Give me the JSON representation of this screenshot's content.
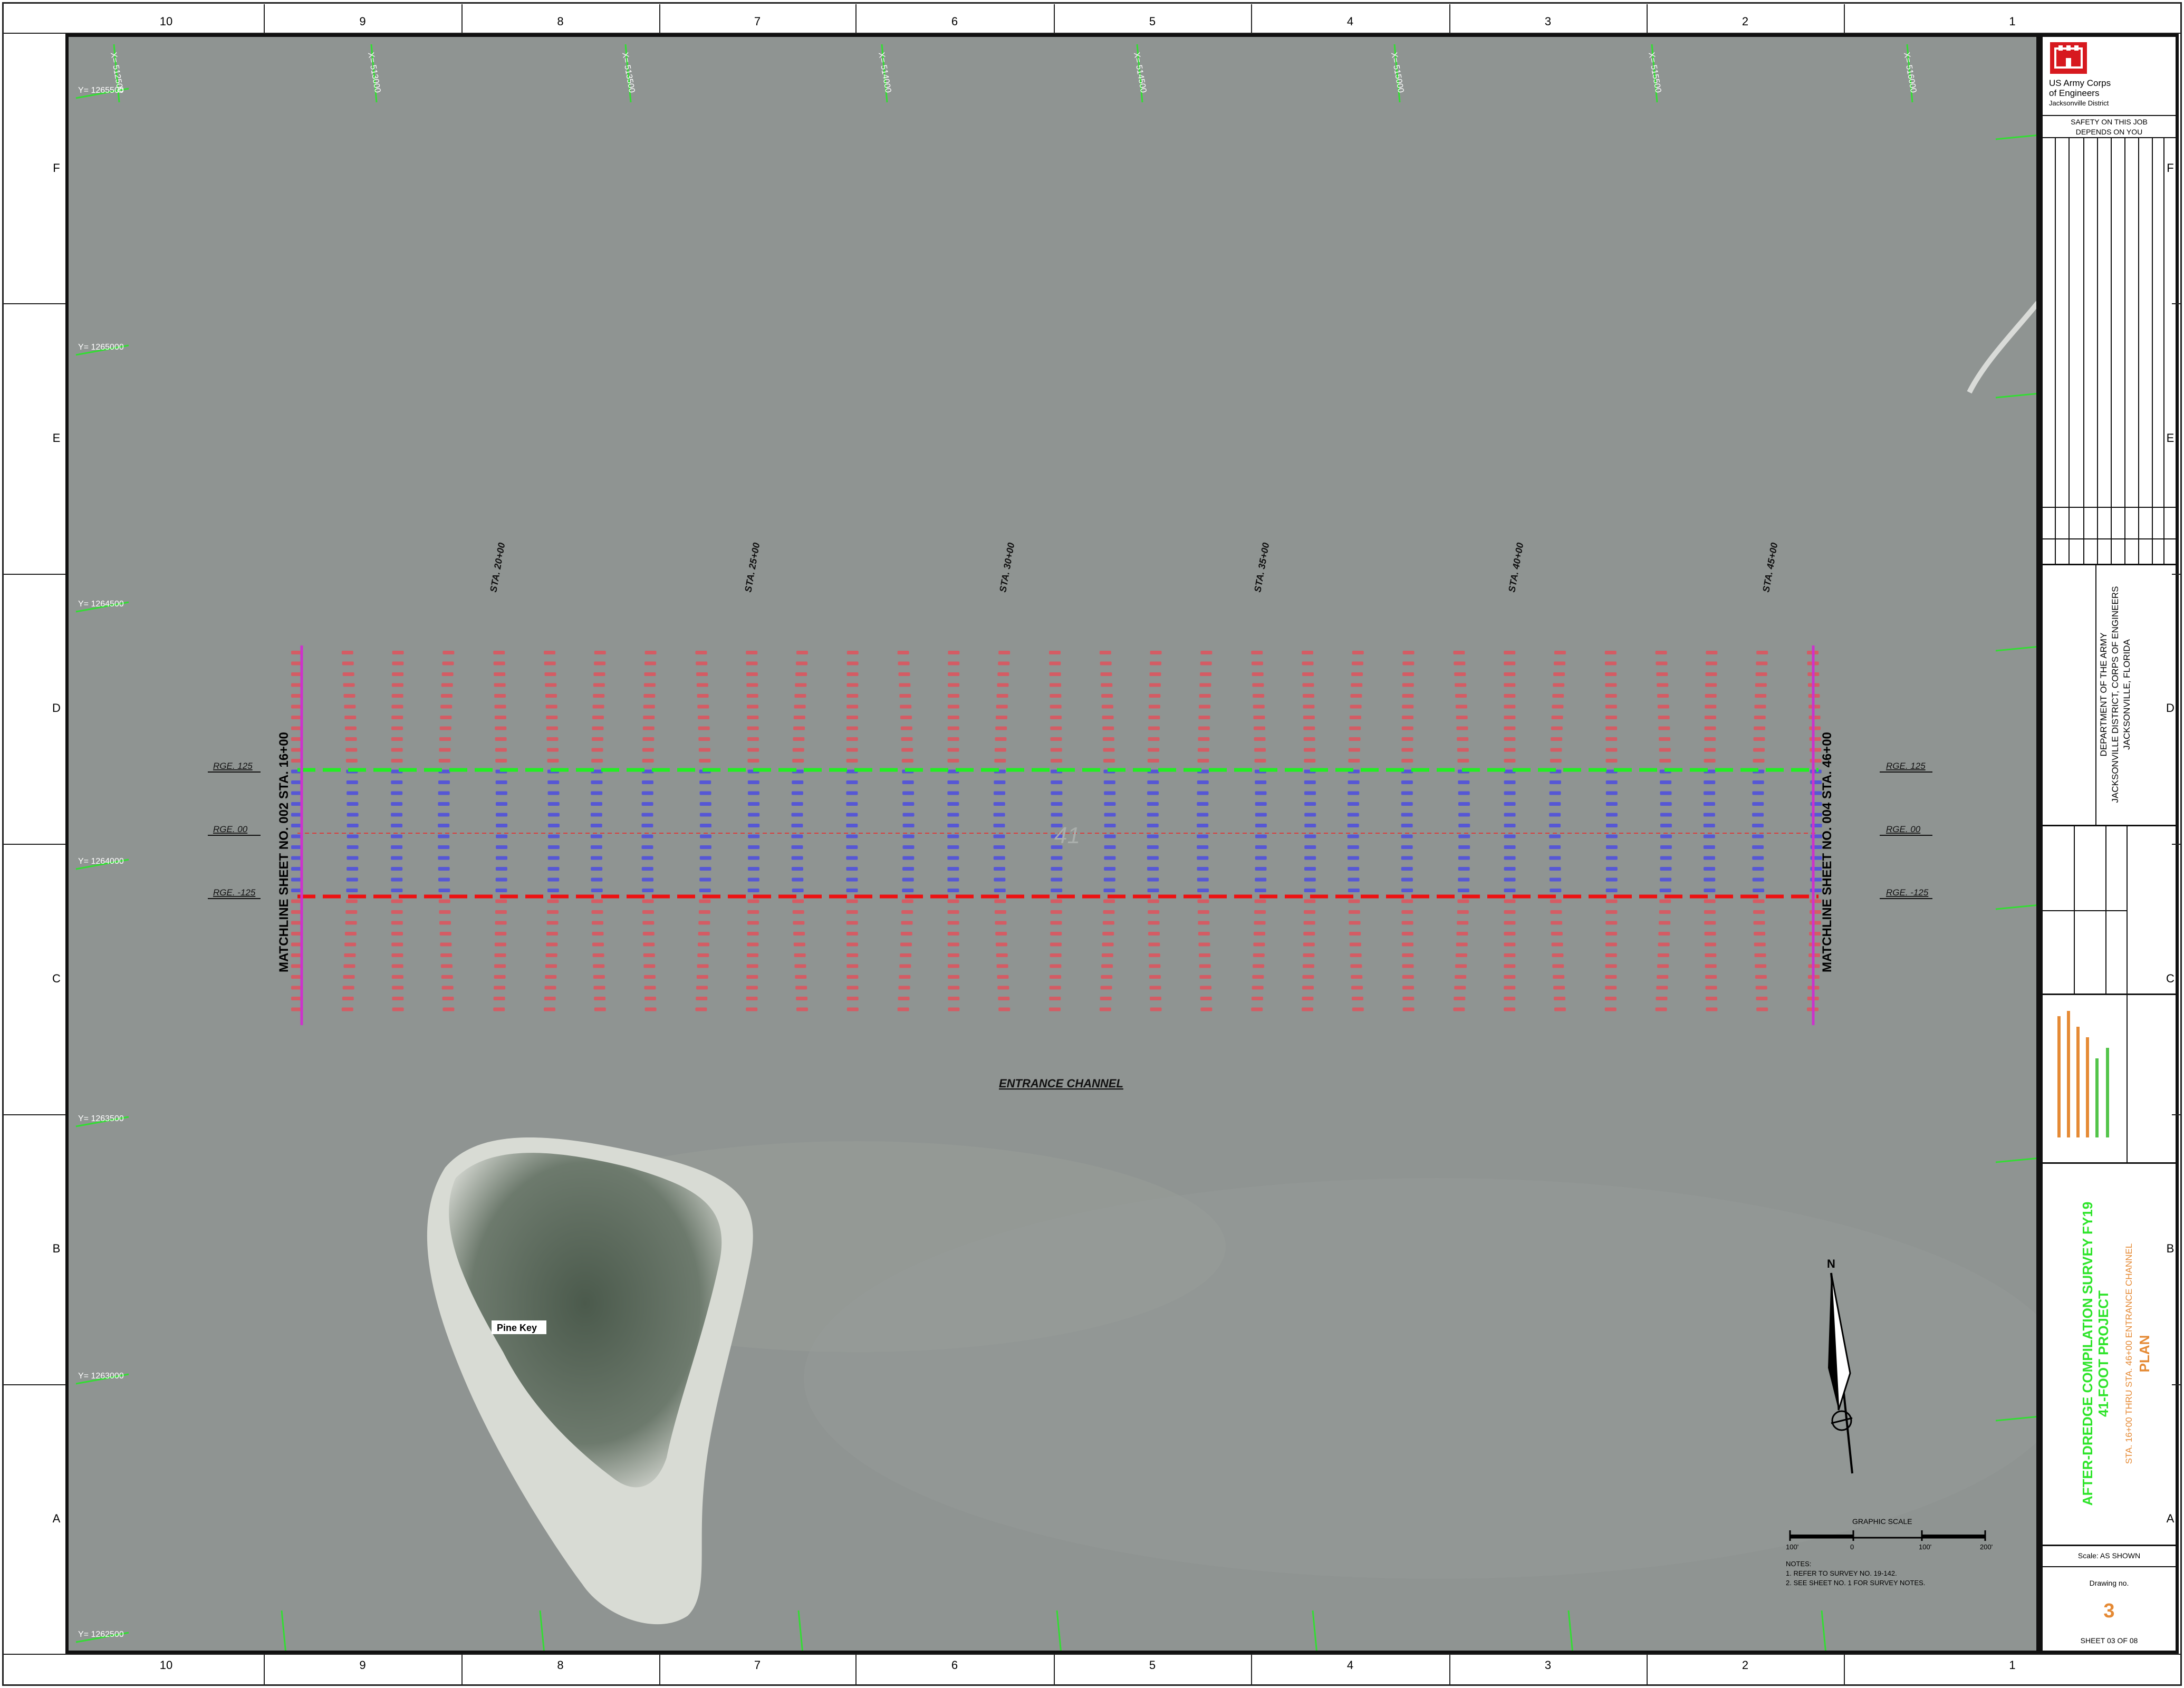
{
  "grid": {
    "columns": [
      "10",
      "9",
      "8",
      "7",
      "6",
      "5",
      "4",
      "3",
      "2",
      "1"
    ],
    "rows": [
      "F",
      "E",
      "D",
      "C",
      "B",
      "A"
    ]
  },
  "map": {
    "coord_labels_y": [
      "Y= 1265500",
      "Y= 1265000",
      "Y= 1264500",
      "Y= 1264000",
      "Y= 1263500",
      "Y= 1263000",
      "Y= 1262500"
    ],
    "coord_labels_x": [
      "X= 512500",
      "X= 513000",
      "X= 513500",
      "X= 514000",
      "X= 514500",
      "X= 515000",
      "X= 515500",
      "X= 516000"
    ],
    "stations": [
      "STA. 20+00",
      "STA. 25+00",
      "STA. 30+00",
      "STA. 35+00",
      "STA. 40+00",
      "STA. 45+00"
    ],
    "range_labels_left": [
      "RGE. 125",
      "RGE. 00",
      "RGE. -125"
    ],
    "range_labels_right": [
      "RGE. 125",
      "RGE. 00",
      "RGE. -125"
    ],
    "matchline_left": "MATCHLINE SHEET NO. 002 STA. 16+00",
    "matchline_right": "MATCHLINE SHEET NO. 004 STA. 46+00",
    "channel_label": "ENTRANCE CHANNEL",
    "channel_depth": "41",
    "island_label": "Pine Key",
    "north_label": "N",
    "scale_title": "GRAPHIC SCALE",
    "scale_ticks": [
      "100'",
      "0",
      "100'",
      "200'"
    ],
    "notes_title": "NOTES:",
    "notes": [
      "1. REFER TO SURVEY NO. 19-142.",
      "2. SEE SHEET NO. 1 FOR SURVEY NOTES."
    ],
    "colors": {
      "range_125": "#22ee22",
      "range_neg125": "#ee1111",
      "matchline": "#cc33cc",
      "sounding_red": "#e0525c",
      "sounding_blue": "#4c4ce0",
      "water": "#8c918f"
    }
  },
  "title_block": {
    "agency": [
      "US Army Corps",
      "of Engineers",
      "Jacksonville District"
    ],
    "safety": [
      "SAFETY ON THIS JOB",
      "DEPENDS ON YOU"
    ],
    "department": [
      "DEPARTMENT OF THE ARMY",
      "JACKSONVILLE DISTRICT, CORPS OF ENGINEERS",
      "JACKSONVILLE, FLORIDA"
    ],
    "project_title": [
      "AFTER-DREDGE COMPILATION SURVEY FY19",
      "41-FOOT PROJECT"
    ],
    "subtitle": "STA. 16+00 THRU STA. 46+00 ENTRANCE CHANNEL",
    "plan_label": "PLAN",
    "scale": "Scale:  AS SHOWN",
    "drawing_no_label": "Drawing no.",
    "drawing_no": "3",
    "sheet": "SHEET  03  OF  08"
  }
}
